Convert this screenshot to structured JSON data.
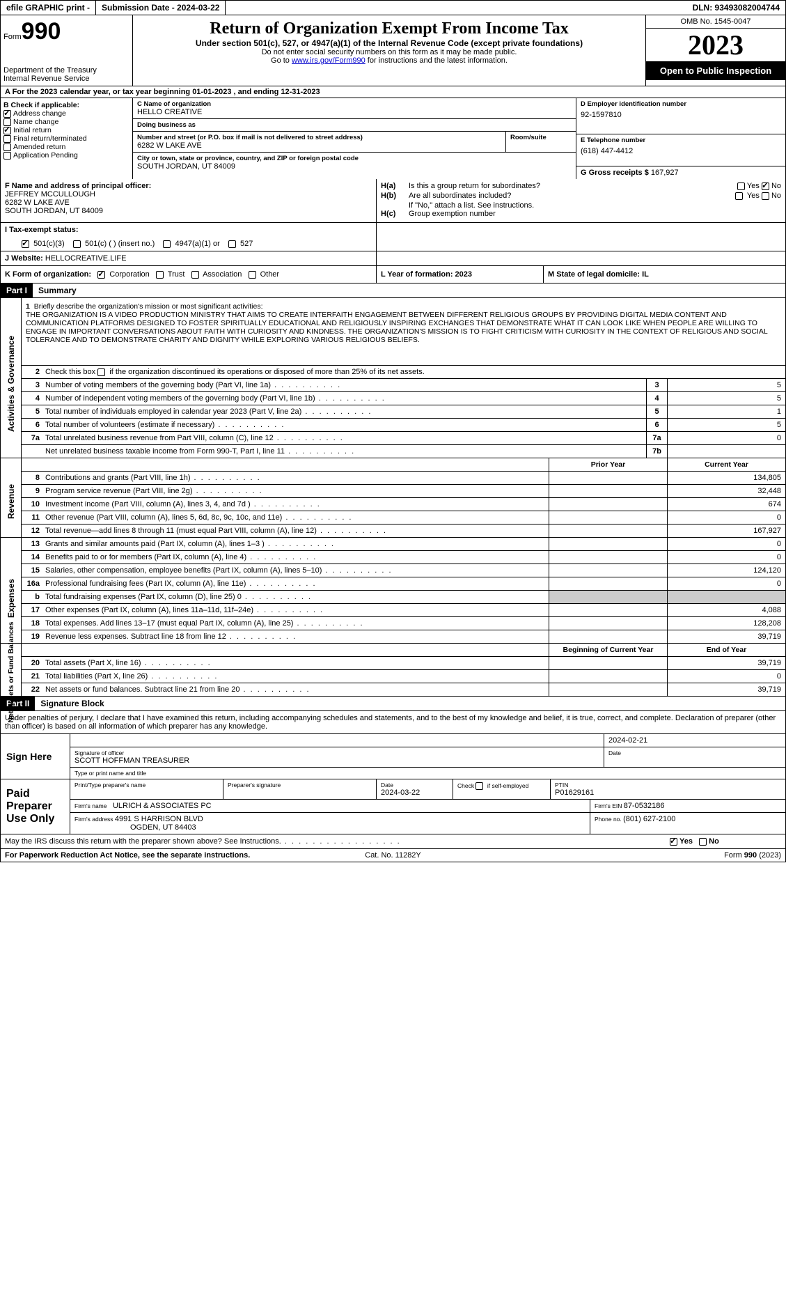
{
  "topbar": {
    "efile": "efile GRAPHIC print - ",
    "submission": "Submission Date - 2024-03-22",
    "dln": "DLN: 93493082004744"
  },
  "header": {
    "form_word": "Form",
    "form_num": "990",
    "dept1": "Department of the Treasury",
    "dept2": "Internal Revenue Service",
    "title": "Return of Organization Exempt From Income Tax",
    "subtitle": "Under section 501(c), 527, or 4947(a)(1) of the Internal Revenue Code (except private foundations)",
    "note1": "Do not enter social security numbers on this form as it may be made public.",
    "note2_pre": "Go to ",
    "note2_link": "www.irs.gov/Form990",
    "note2_post": " for instructions and the latest information.",
    "omb": "OMB No. 1545-0047",
    "year": "2023",
    "open": "Open to Public Inspection"
  },
  "row_a": {
    "text": "A For the 2023 calendar year, or tax year beginning 01-01-2023     , and ending 12-31-2023"
  },
  "box_b": {
    "header": "B Check if applicable:",
    "items": [
      {
        "label": "Address change",
        "checked": true
      },
      {
        "label": "Name change",
        "checked": false
      },
      {
        "label": "Initial return",
        "checked": true
      },
      {
        "label": "Final return/terminated",
        "checked": false
      },
      {
        "label": "Amended return",
        "checked": false
      },
      {
        "label": "Application Pending",
        "checked": false
      }
    ]
  },
  "box_c": {
    "name_lbl": "C Name of organization",
    "name": "HELLO CREATIVE",
    "dba_lbl": "Doing business as",
    "dba": "",
    "street_lbl": "Number and street (or P.O. box if mail is not delivered to street address)",
    "street": "6282 W LAKE AVE",
    "room_lbl": "Room/suite",
    "room": "",
    "city_lbl": "City or town, state or province, country, and ZIP or foreign postal code",
    "city": "SOUTH JORDAN, UT  84009"
  },
  "box_d": {
    "ein_lbl": "D Employer identification number",
    "ein": "92-1597810",
    "phone_lbl": "E Telephone number",
    "phone": "(618) 447-4412",
    "gross_lbl": "G Gross receipts $ ",
    "gross": "167,927"
  },
  "box_f": {
    "lbl": "F  Name and address of principal officer:",
    "name": "JEFFREY MCCULLOUGH",
    "addr1": "6282 W LAKE AVE",
    "addr2": "SOUTH JORDAN, UT  84009"
  },
  "box_h": {
    "ha_lbl": "H(a)",
    "ha_txt": "Is this a group return for subordinates?",
    "ha_yes": false,
    "ha_no": true,
    "hb_lbl": "H(b)",
    "hb_txt": "Are all subordinates included?",
    "hb_note": "If \"No,\" attach a list. See instructions.",
    "hc_lbl": "H(c)",
    "hc_txt": "Group exemption number  "
  },
  "row_i": {
    "lbl": "I   Tax-exempt status:",
    "o1": "501(c)(3)",
    "o1c": true,
    "o2": "501(c) (  ) (insert no.)",
    "o3": "4947(a)(1) or",
    "o4": "527"
  },
  "row_j": {
    "lbl": "J   Website: ",
    "val": "HELLOCREATIVE.LIFE"
  },
  "row_k": {
    "lbl": "K Form of organization:",
    "o1": "Corporation",
    "o1c": true,
    "o2": "Trust",
    "o3": "Association",
    "o4": "Other"
  },
  "row_lm": {
    "l": "L Year of formation: 2023",
    "m": "M State of legal domicile: IL"
  },
  "parts": {
    "p1": "Part I",
    "p1t": "Summary",
    "p2": "Part II",
    "p2t": "Signature Block"
  },
  "sidelabels": {
    "ag": "Activities & Governance",
    "rev": "Revenue",
    "exp": "Expenses",
    "na": "Net Assets or Fund Balances"
  },
  "summary": {
    "l1_lbl": "Briefly describe the organization's mission or most significant activities:",
    "l1_txt": "THE ORGANIZATION IS A VIDEO PRODUCTION MINISTRY THAT AIMS TO CREATE INTERFAITH ENGAGEMENT BETWEEN DIFFERENT RELIGIOUS GROUPS BY PROVIDING DIGITAL MEDIA CONTENT AND COMMUNICATION PLATFORMS DESIGNED TO FOSTER SPIRITUALLY EDUCATIONAL AND RELIGIOUSLY INSPIRING EXCHANGES THAT DEMONSTRATE WHAT IT CAN LOOK LIKE WHEN PEOPLE ARE WILLING TO ENGAGE IN IMPORTANT CONVERSATIONS ABOUT FAITH WITH CURIOSITY AND KINDNESS. THE ORGANIZATION'S MISSION IS TO FIGHT CRITICISM WITH CURIOSITY IN THE CONTEXT OF RELIGIOUS AND SOCIAL TOLERANCE AND TO DEMONSTRATE CHARITY AND DIGNITY WHILE EXPLORING VARIOUS RELIGIOUS BELIEFS.",
    "l2": "Check this box        if the organization discontinued its operations or disposed of more than 25% of its net assets.",
    "lines_ag": [
      {
        "n": "3",
        "t": "Number of voting members of the governing body (Part VI, line 1a)",
        "bn": "3",
        "v": "5"
      },
      {
        "n": "4",
        "t": "Number of independent voting members of the governing body (Part VI, line 1b)",
        "bn": "4",
        "v": "5"
      },
      {
        "n": "5",
        "t": "Total number of individuals employed in calendar year 2023 (Part V, line 2a)",
        "bn": "5",
        "v": "1"
      },
      {
        "n": "6",
        "t": "Total number of volunteers (estimate if necessary)",
        "bn": "6",
        "v": "5"
      },
      {
        "n": "7a",
        "t": "Total unrelated business revenue from Part VIII, column (C), line 12",
        "bn": "7a",
        "v": "0"
      },
      {
        "n": "",
        "t": "Net unrelated business taxable income from Form 990-T, Part I, line 11",
        "bn": "7b",
        "v": ""
      }
    ],
    "py_hdr": "Prior Year",
    "cy_hdr": "Current Year",
    "lines_rev": [
      {
        "n": "8",
        "t": "Contributions and grants (Part VIII, line 1h)",
        "py": "",
        "cy": "134,805"
      },
      {
        "n": "9",
        "t": "Program service revenue (Part VIII, line 2g)",
        "py": "",
        "cy": "32,448"
      },
      {
        "n": "10",
        "t": "Investment income (Part VIII, column (A), lines 3, 4, and 7d )",
        "py": "",
        "cy": "674"
      },
      {
        "n": "11",
        "t": "Other revenue (Part VIII, column (A), lines 5, 6d, 8c, 9c, 10c, and 11e)",
        "py": "",
        "cy": "0"
      },
      {
        "n": "12",
        "t": "Total revenue—add lines 8 through 11 (must equal Part VIII, column (A), line 12)",
        "py": "",
        "cy": "167,927"
      }
    ],
    "lines_exp": [
      {
        "n": "13",
        "t": "Grants and similar amounts paid (Part IX, column (A), lines 1–3 )",
        "py": "",
        "cy": "0"
      },
      {
        "n": "14",
        "t": "Benefits paid to or for members (Part IX, column (A), line 4)",
        "py": "",
        "cy": "0"
      },
      {
        "n": "15",
        "t": "Salaries, other compensation, employee benefits (Part IX, column (A), lines 5–10)",
        "py": "",
        "cy": "124,120"
      },
      {
        "n": "16a",
        "t": "Professional fundraising fees (Part IX, column (A), line 11e)",
        "py": "",
        "cy": "0"
      },
      {
        "n": "b",
        "t": "Total fundraising expenses (Part IX, column (D), line 25) 0",
        "py": "grey",
        "cy": "grey"
      },
      {
        "n": "17",
        "t": "Other expenses (Part IX, column (A), lines 11a–11d, 11f–24e)",
        "py": "",
        "cy": "4,088"
      },
      {
        "n": "18",
        "t": "Total expenses. Add lines 13–17 (must equal Part IX, column (A), line 25)",
        "py": "",
        "cy": "128,208"
      },
      {
        "n": "19",
        "t": "Revenue less expenses. Subtract line 18 from line 12",
        "py": "",
        "cy": "39,719"
      }
    ],
    "by_hdr": "Beginning of Current Year",
    "ey_hdr": "End of Year",
    "lines_na": [
      {
        "n": "20",
        "t": "Total assets (Part X, line 16)",
        "py": "",
        "cy": "39,719"
      },
      {
        "n": "21",
        "t": "Total liabilities (Part X, line 26)",
        "py": "",
        "cy": "0"
      },
      {
        "n": "22",
        "t": "Net assets or fund balances. Subtract line 21 from line 20",
        "py": "",
        "cy": "39,719"
      }
    ]
  },
  "sig": {
    "decl": "Under penalties of perjury, I declare that I have examined this return, including accompanying schedules and statements, and to the best of my knowledge and belief, it is true, correct, and complete. Declaration of preparer (other than officer) is based on all information of which preparer has any knowledge.",
    "sign_here": "Sign Here",
    "sig_date": "2024-02-21",
    "sig_lbl": "Signature of officer",
    "sig_name": "SCOTT HOFFMAN  TREASURER",
    "sig_type_lbl": "Type or print name and title",
    "date_lbl": "Date",
    "paid": "Paid Preparer Use Only",
    "p_name_lbl": "Print/Type preparer's name",
    "p_sig_lbl": "Preparer's signature",
    "p_date_lbl": "Date",
    "p_date": "2024-03-22",
    "p_check_lbl": "Check         if self-employed",
    "ptin_lbl": "PTIN",
    "ptin": "P01629161",
    "firm_name_lbl": "Firm's name   ",
    "firm_name": "ULRICH & ASSOCIATES PC",
    "firm_ein_lbl": "Firm's EIN  ",
    "firm_ein": "87-0532186",
    "firm_addr_lbl": "Firm's address ",
    "firm_addr1": "4991 S HARRISON BLVD",
    "firm_addr2": "OGDEN, UT  84403",
    "firm_phone_lbl": "Phone no. ",
    "firm_phone": "(801) 627-2100",
    "discuss": "May the IRS discuss this return with the preparer shown above? See Instructions.",
    "yes": "Yes",
    "no": "No"
  },
  "footer": {
    "l": "For Paperwork Reduction Act Notice, see the separate instructions.",
    "c": "Cat. No. 11282Y",
    "r": "Form 990 (2023)"
  }
}
